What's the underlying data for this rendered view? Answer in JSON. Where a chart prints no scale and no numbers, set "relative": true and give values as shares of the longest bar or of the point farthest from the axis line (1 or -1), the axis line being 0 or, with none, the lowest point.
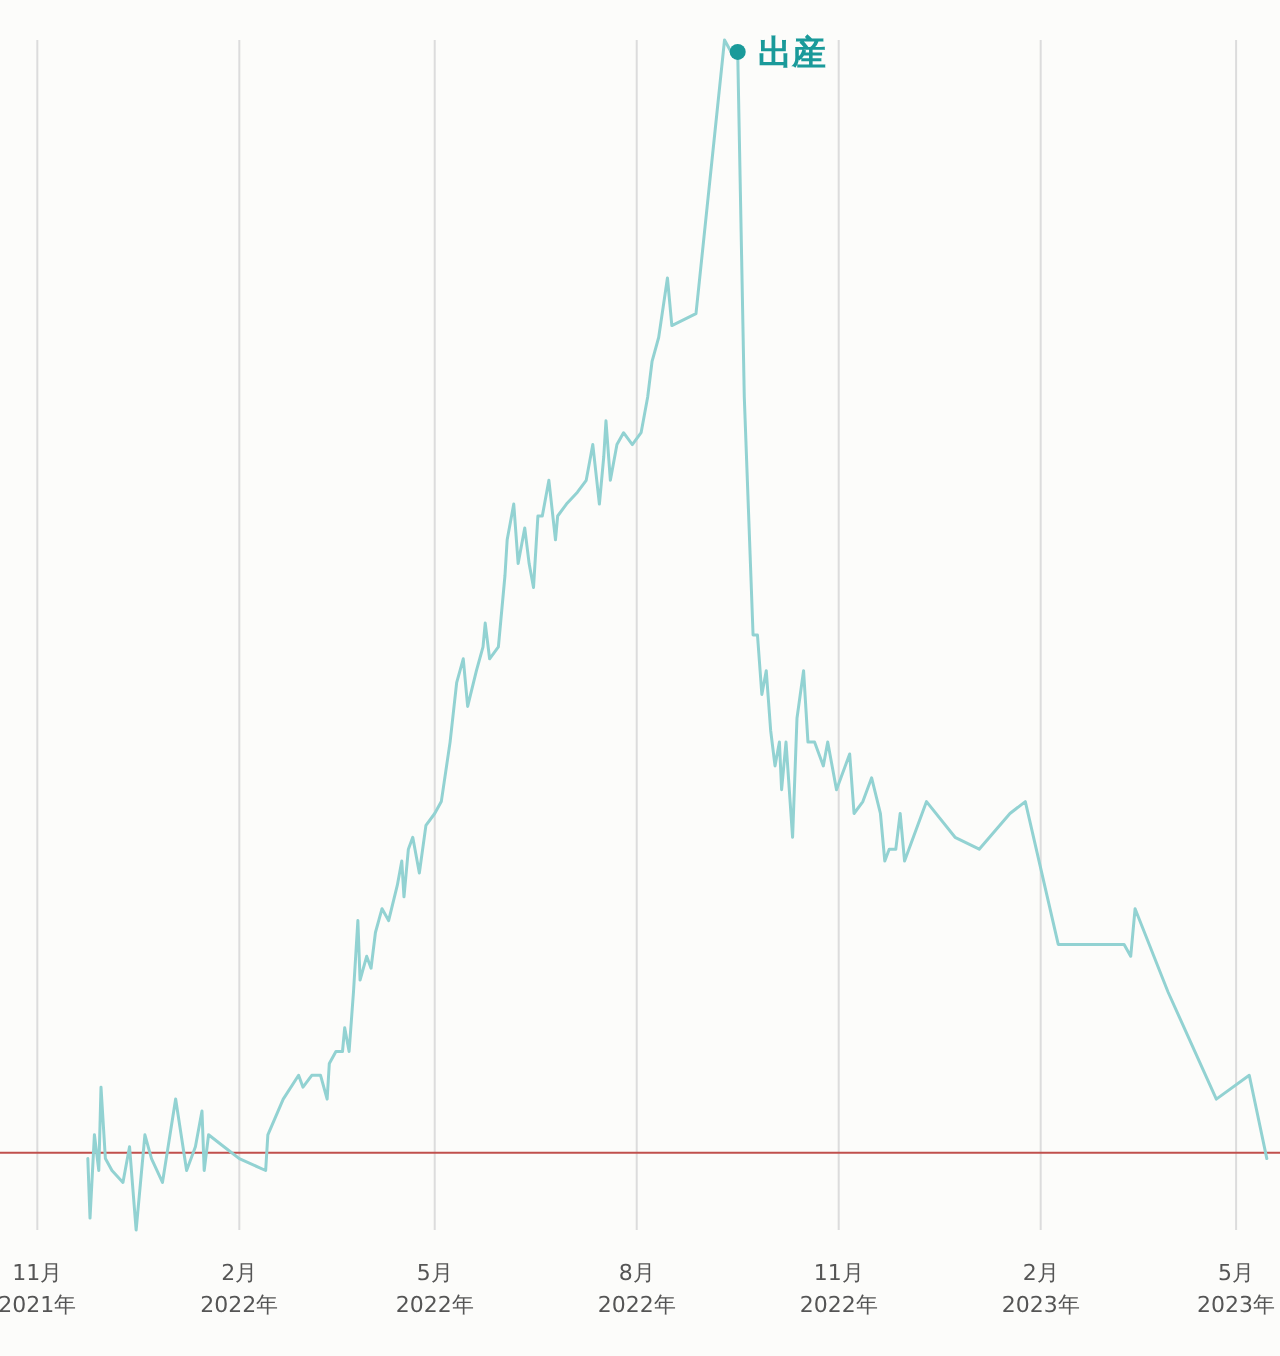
{
  "chart_data": {
    "type": "line",
    "relative": true,
    "grid": "x",
    "marker": "none",
    "line_style": "solid",
    "xlim": [
      "2021-10-15",
      "2023-05-21"
    ],
    "xticks": [
      {
        "value": "2021-11-01",
        "label": "11月\n2021年"
      },
      {
        "value": "2022-02-01",
        "label": "2月\n2022年"
      },
      {
        "value": "2022-05-01",
        "label": "5月\n2022年"
      },
      {
        "value": "2022-08-01",
        "label": "8月\n2022年"
      },
      {
        "value": "2022-11-01",
        "label": "11月\n2022年"
      },
      {
        "value": "2023-02-01",
        "label": "2月\n2023年"
      },
      {
        "value": "2023-05-01",
        "label": "5月\n2023年"
      }
    ],
    "x": [
      "2021-11-24",
      "2021-11-25",
      "2021-11-27",
      "2021-11-29",
      "2021-11-30",
      "2021-12-02",
      "2021-12-05",
      "2021-12-10",
      "2021-12-13",
      "2021-12-16",
      "2021-12-20",
      "2021-12-23",
      "2021-12-28",
      "2022-01-03",
      "2022-01-08",
      "2022-01-12",
      "2022-01-15",
      "2022-01-16",
      "2022-01-18",
      "2022-01-25",
      "2022-02-01",
      "2022-02-13",
      "2022-02-14",
      "2022-02-21",
      "2022-02-28",
      "2022-03-02",
      "2022-03-06",
      "2022-03-10",
      "2022-03-13",
      "2022-03-14",
      "2022-03-17",
      "2022-03-20",
      "2022-03-21",
      "2022-03-23",
      "2022-03-25",
      "2022-03-27",
      "2022-03-28",
      "2022-03-31",
      "2022-04-02",
      "2022-04-04",
      "2022-04-07",
      "2022-04-10",
      "2022-04-14",
      "2022-04-16",
      "2022-04-17",
      "2022-04-19",
      "2022-04-21",
      "2022-04-24",
      "2022-04-27",
      "2022-05-01",
      "2022-05-04",
      "2022-05-08",
      "2022-05-11",
      "2022-05-14",
      "2022-05-16",
      "2022-05-20",
      "2022-05-23",
      "2022-05-24",
      "2022-05-26",
      "2022-05-30",
      "2022-06-02",
      "2022-06-03",
      "2022-06-06",
      "2022-06-08",
      "2022-06-11",
      "2022-06-13",
      "2022-06-15",
      "2022-06-17",
      "2022-06-19",
      "2022-06-22",
      "2022-06-25",
      "2022-06-26",
      "2022-06-30",
      "2022-07-05",
      "2022-07-09",
      "2022-07-12",
      "2022-07-15",
      "2022-07-17",
      "2022-07-18",
      "2022-07-20",
      "2022-07-23",
      "2022-07-26",
      "2022-07-30",
      "2022-08-03",
      "2022-08-06",
      "2022-08-08",
      "2022-08-11",
      "2022-08-15",
      "2022-08-17",
      "2022-08-28",
      "2022-09-10",
      "2022-09-13",
      "2022-09-16",
      "2022-09-19",
      "2022-09-23",
      "2022-09-25",
      "2022-09-27",
      "2022-09-29",
      "2022-10-01",
      "2022-10-03",
      "2022-10-05",
      "2022-10-06",
      "2022-10-08",
      "2022-10-11",
      "2022-10-13",
      "2022-10-16",
      "2022-10-18",
      "2022-10-21",
      "2022-10-23",
      "2022-10-25",
      "2022-10-27",
      "2022-10-31",
      "2022-11-06",
      "2022-11-08",
      "2022-11-12",
      "2022-11-16",
      "2022-11-20",
      "2022-11-22",
      "2022-11-24",
      "2022-11-27",
      "2022-11-29",
      "2022-12-01",
      "2022-12-11",
      "2022-12-24",
      "2023-01-04",
      "2023-01-18",
      "2023-01-25",
      "2023-02-09",
      "2023-03-11",
      "2023-03-14",
      "2023-03-16",
      "2023-03-31",
      "2023-04-22",
      "2023-05-07",
      "2023-05-15"
    ],
    "series": [
      {
        "color": "#92d2d2",
        "values": [
          0.06,
          0.01,
          0.08,
          0.05,
          0.12,
          0.06,
          0.05,
          0.04,
          0.07,
          0,
          0.08,
          0.06,
          0.04,
          0.11,
          0.05,
          0.07,
          0.1,
          0.05,
          0.08,
          0.07,
          0.06,
          0.05,
          0.08,
          0.11,
          0.13,
          0.12,
          0.13,
          0.13,
          0.11,
          0.14,
          0.15,
          0.15,
          0.17,
          0.15,
          0.2,
          0.26,
          0.21,
          0.23,
          0.22,
          0.25,
          0.27,
          0.26,
          0.29,
          0.31,
          0.28,
          0.32,
          0.33,
          0.3,
          0.34,
          0.35,
          0.36,
          0.41,
          0.46,
          0.48,
          0.44,
          0.47,
          0.49,
          0.51,
          0.48,
          0.49,
          0.55,
          0.58,
          0.61,
          0.56,
          0.59,
          0.56,
          0.54,
          0.6,
          0.6,
          0.63,
          0.58,
          0.6,
          0.61,
          0.62,
          0.63,
          0.66,
          0.61,
          0.65,
          0.68,
          0.63,
          0.66,
          0.67,
          0.66,
          0.67,
          0.7,
          0.73,
          0.75,
          0.8,
          0.76,
          0.77,
          1,
          0.99,
          0.99,
          0.7,
          0.5,
          0.5,
          0.45,
          0.47,
          0.42,
          0.39,
          0.41,
          0.37,
          0.41,
          0.33,
          0.43,
          0.47,
          0.41,
          0.41,
          0.4,
          0.39,
          0.41,
          0.37,
          0.4,
          0.35,
          0.36,
          0.38,
          0.35,
          0.31,
          0.32,
          0.32,
          0.35,
          0.31,
          0.36,
          0.33,
          0.32,
          0.35,
          0.36,
          0.24,
          0.24,
          0.23,
          0.27,
          0.2,
          0.11,
          0.13,
          0.06
        ]
      }
    ],
    "ref_lines": [
      {
        "axis": "y",
        "value": 0.065,
        "color": "#c0504d"
      }
    ],
    "annotations": [
      {
        "text": "出産",
        "x": "2022-09-16",
        "y": 0.99
      }
    ]
  }
}
